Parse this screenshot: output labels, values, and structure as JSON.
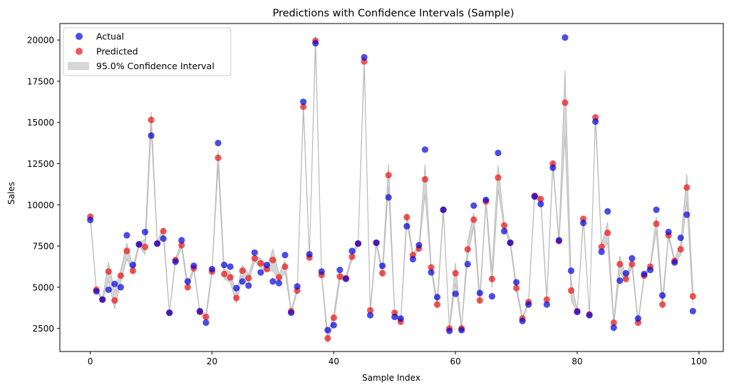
{
  "chart_data": {
    "type": "scatter",
    "title": "Predictions with Confidence Intervals (Sample)",
    "xlabel": "Sample Index",
    "ylabel": "Sales",
    "xlim": [
      -5,
      104
    ],
    "ylim": [
      1100,
      21000
    ],
    "xticks": [
      0,
      20,
      40,
      60,
      80,
      100
    ],
    "yticks": [
      2500,
      5000,
      7500,
      10000,
      12500,
      15000,
      17500,
      20000
    ],
    "grid": false,
    "legend_position": "upper-left",
    "confidence_level_label": "95.0% Confidence Interval",
    "series": [
      {
        "name": "Actual",
        "color": "#0000dd",
        "values": [
          9080,
          4750,
          4250,
          4850,
          5200,
          5000,
          8150,
          6350,
          7600,
          8350,
          14200,
          7650,
          7950,
          3450,
          6550,
          7850,
          5350,
          6300,
          3550,
          2850,
          6100,
          13750,
          6350,
          6250,
          4950,
          5350,
          5100,
          7100,
          5900,
          6350,
          5350,
          5250,
          6950,
          3450,
          5050,
          16250,
          7000,
          19800,
          5950,
          2400,
          2700,
          6050,
          5500,
          7200,
          7650,
          18950,
          3300,
          7700,
          6300,
          10450,
          3200,
          3100,
          8700,
          6700,
          7550,
          13350,
          5900,
          4400,
          9700,
          2350,
          4600,
          2400,
          6400,
          9950,
          4650,
          10300,
          4450,
          13150,
          8400,
          7700,
          5300,
          2950,
          3950,
          10500,
          10050,
          3950,
          12250,
          7850,
          20150,
          6000,
          3500,
          8900,
          3300,
          15050,
          7150,
          9600,
          2550,
          5400,
          5850,
          6750,
          3100,
          5800,
          6050,
          9700,
          4500,
          8350,
          6500,
          8000,
          9400,
          3550
        ]
      },
      {
        "name": "Predicted",
        "color": "#ee1111",
        "values": [
          9280,
          4850,
          4250,
          5950,
          4200,
          5700,
          7200,
          6000,
          7600,
          7450,
          15150,
          7650,
          8400,
          3450,
          6650,
          7550,
          5000,
          6150,
          3500,
          3200,
          5950,
          12850,
          5800,
          5600,
          4350,
          6000,
          5550,
          6750,
          6450,
          6100,
          6650,
          5600,
          6250,
          3550,
          4800,
          15950,
          6800,
          19950,
          5750,
          1900,
          3150,
          5650,
          5550,
          6850,
          7650,
          18700,
          3600,
          7700,
          5850,
          11800,
          3450,
          2900,
          9250,
          6950,
          7350,
          11550,
          6200,
          3950,
          9700,
          2500,
          5850,
          2500,
          7300,
          9100,
          4200,
          10200,
          5500,
          11650,
          8750,
          7700,
          4950,
          3100,
          4100,
          10550,
          10350,
          4250,
          12500,
          7800,
          16200,
          4800,
          3550,
          9150,
          3350,
          15300,
          7450,
          8300,
          2850,
          6400,
          5500,
          6400,
          2850,
          5700,
          6250,
          8850,
          3950,
          8150,
          6600,
          7300,
          11050,
          4450
        ]
      }
    ],
    "x": [
      0,
      1,
      2,
      3,
      4,
      5,
      6,
      7,
      8,
      9,
      10,
      11,
      12,
      13,
      14,
      15,
      16,
      17,
      18,
      19,
      20,
      21,
      22,
      23,
      24,
      25,
      26,
      27,
      28,
      29,
      30,
      31,
      32,
      33,
      34,
      35,
      36,
      37,
      38,
      39,
      40,
      41,
      42,
      43,
      44,
      45,
      46,
      47,
      48,
      49,
      50,
      51,
      52,
      53,
      54,
      55,
      56,
      57,
      58,
      59,
      60,
      61,
      62,
      63,
      64,
      65,
      66,
      67,
      68,
      69,
      70,
      71,
      72,
      73,
      74,
      75,
      76,
      77,
      78,
      79,
      80,
      81,
      82,
      83,
      84,
      85,
      86,
      87,
      88,
      89,
      90,
      91,
      92,
      93,
      94,
      95,
      96,
      97,
      98,
      99
    ],
    "ci_color": "#bbbbbb"
  }
}
